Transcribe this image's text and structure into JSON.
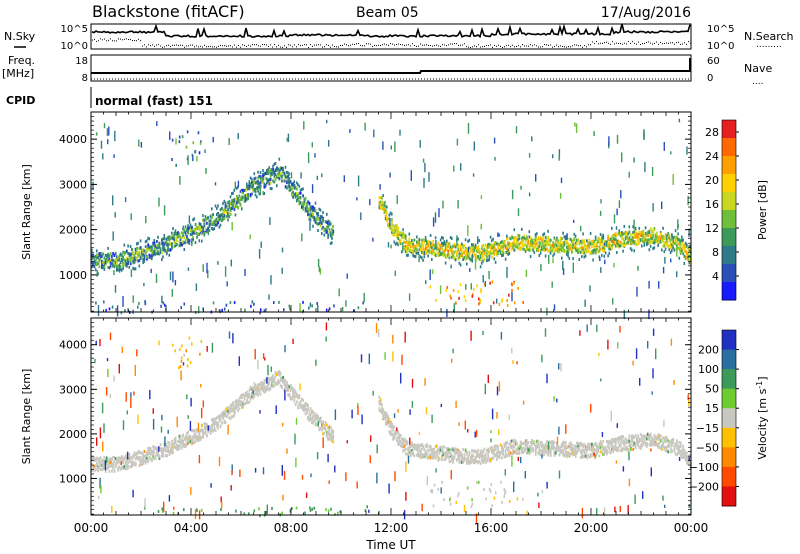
{
  "header": {
    "station": "Blackstone (fitACF)",
    "beam": "Beam 05",
    "date": "17/Aug/2016"
  },
  "side_labels": {
    "nsky": "N.Sky",
    "nsearch": "N.Search",
    "nsearch_dots": ".........",
    "freq": "Freq.",
    "freq_unit": "[MHz]",
    "nave": "Nave",
    "nave_dots": "....",
    "cpid": "CPID",
    "cpid_value": "normal (fast) 151"
  },
  "strip_ticks": {
    "noise_left": [
      "10^5",
      "10^0"
    ],
    "noise_right": [
      "10^5",
      "10^0"
    ],
    "freq_left": [
      "18",
      "8"
    ],
    "nave_right": [
      "60",
      "0"
    ]
  },
  "chart_data": [
    {
      "type": "heatmap",
      "name": "power",
      "xlabel": "Time UT",
      "ylabel": "Slant Range [km]",
      "xlim": [
        0,
        24
      ],
      "ylim": [
        180,
        4600
      ],
      "xticks": [
        "00:00",
        "04:00",
        "08:00",
        "12:00",
        "16:00",
        "20:00",
        "00:00"
      ],
      "yticks": [
        1000,
        2000,
        3000,
        4000
      ],
      "colorbar": {
        "label": "Power [dB]",
        "ticks": [
          4,
          8,
          12,
          16,
          20,
          24,
          28
        ],
        "colors": [
          "#1a1aff",
          "#2a4fb8",
          "#2f7a88",
          "#3c9a5a",
          "#6fbf3a",
          "#c8d820",
          "#ffd000",
          "#ffa000",
          "#ff6a00",
          "#e52020"
        ]
      },
      "features": [
        {
          "kind": "band",
          "points": [
            [
              0,
              1350
            ],
            [
              1,
              1350
            ],
            [
              2,
              1500
            ],
            [
              3,
              1700
            ],
            [
              4,
              1950
            ],
            [
              4.8,
              2200
            ],
            [
              5.5,
              2500
            ],
            [
              6.5,
              3000
            ],
            [
              7.5,
              3300
            ],
            [
              8.2,
              2800
            ],
            [
              9,
              2300
            ],
            [
              9.7,
              1950
            ]
          ],
          "level": 12
        },
        {
          "kind": "band",
          "points": [
            [
              11.5,
              2700
            ],
            [
              12,
              2100
            ],
            [
              12.6,
              1700
            ],
            [
              13.3,
              1650
            ],
            [
              14.5,
              1550
            ],
            [
              15.5,
              1500
            ],
            [
              17,
              1750
            ],
            [
              18.5,
              1700
            ],
            [
              20,
              1650
            ],
            [
              21,
              1800
            ],
            [
              22.5,
              1900
            ],
            [
              23.5,
              1700
            ],
            [
              24,
              1400
            ]
          ],
          "level": 18
        },
        {
          "kind": "patch",
          "x": [
            3.2,
            4.4
          ],
          "y": [
            3400,
            4200
          ],
          "level": 8
        },
        {
          "kind": "patch",
          "x": [
            13.5,
            17.3
          ],
          "y": [
            350,
            950
          ],
          "level": 24
        },
        {
          "kind": "patch",
          "x": [
            0,
            11.5
          ],
          "y": [
            190,
            450
          ],
          "level": 6
        }
      ]
    },
    {
      "type": "heatmap",
      "name": "velocity",
      "xlabel": "Time UT",
      "ylabel": "Slant Range [km]",
      "xlim": [
        0,
        24
      ],
      "ylim": [
        180,
        4600
      ],
      "xticks": [
        "00:00",
        "04:00",
        "08:00",
        "12:00",
        "16:00",
        "20:00",
        "00:00"
      ],
      "yticks": [
        1000,
        2000,
        3000,
        4000
      ],
      "colorbar": {
        "label": "Velocity [m s^-1]",
        "ticks": [
          200,
          100,
          50,
          15,
          -15,
          -50,
          -100,
          -200
        ],
        "colors": [
          "#2030c0",
          "#2a6fa0",
          "#3c9a5a",
          "#6fcc30",
          "#c8c8c0",
          "#ffc000",
          "#ff8a00",
          "#ff4a00",
          "#e01010"
        ]
      },
      "features": [
        {
          "kind": "band",
          "points": [
            [
              0,
              1350
            ],
            [
              1,
              1350
            ],
            [
              2,
              1500
            ],
            [
              3,
              1700
            ],
            [
              4,
              1950
            ],
            [
              4.8,
              2200
            ],
            [
              5.5,
              2500
            ],
            [
              6.5,
              3000
            ],
            [
              7.5,
              3300
            ],
            [
              8.2,
              2800
            ],
            [
              9,
              2300
            ],
            [
              9.7,
              1950
            ]
          ],
          "level": 0
        },
        {
          "kind": "band",
          "points": [
            [
              11.5,
              2700
            ],
            [
              12,
              2100
            ],
            [
              12.6,
              1700
            ],
            [
              13.3,
              1650
            ],
            [
              14.5,
              1550
            ],
            [
              15.5,
              1500
            ],
            [
              17,
              1750
            ],
            [
              18.5,
              1700
            ],
            [
              20,
              1650
            ],
            [
              21,
              1800
            ],
            [
              22.5,
              1900
            ],
            [
              23.5,
              1700
            ],
            [
              24,
              1400
            ]
          ],
          "level": 0
        },
        {
          "kind": "patch",
          "x": [
            3.2,
            4.4
          ],
          "y": [
            3400,
            4200
          ],
          "level": -30
        },
        {
          "kind": "patch",
          "x": [
            13.5,
            17.3
          ],
          "y": [
            400,
            950
          ],
          "level": 0
        },
        {
          "kind": "patch",
          "x": [
            2,
            11.5
          ],
          "y": [
            190,
            420
          ],
          "level": 40
        }
      ]
    }
  ]
}
